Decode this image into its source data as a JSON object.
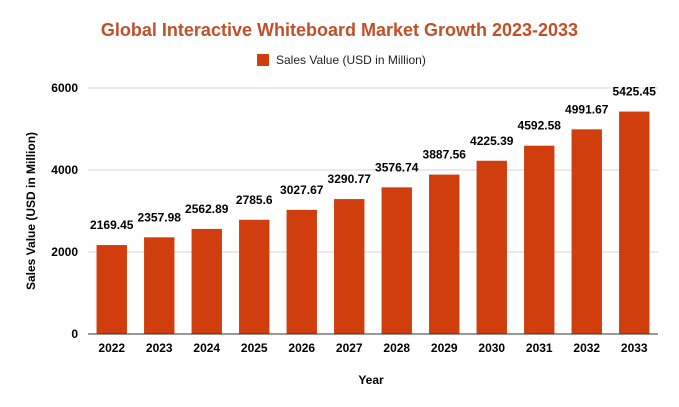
{
  "colors": {
    "bar": "#d13e0d",
    "title": "#c0502a",
    "grid": "#d6d6d6",
    "axis": "#333333"
  },
  "chart_data": {
    "type": "bar",
    "title": "Global Interactive Whiteboard Market Growth 2023-2033",
    "xlabel": "Year",
    "ylabel": "Sales Value (USD in Million)",
    "legend": {
      "placement": "top-center"
    },
    "grid": true,
    "ylim": [
      0,
      6000
    ],
    "yticks": [
      0,
      2000,
      4000,
      6000
    ],
    "categories": [
      "2022",
      "2023",
      "2024",
      "2025",
      "2026",
      "2027",
      "2028",
      "2029",
      "2030",
      "2031",
      "2032",
      "2033"
    ],
    "series": [
      {
        "name": "Sales Value (USD in Million)",
        "values": [
          2169.45,
          2357.98,
          2562.89,
          2785.6,
          3027.67,
          3290.77,
          3576.74,
          3887.56,
          4225.39,
          4592.58,
          4991.67,
          5425.45
        ]
      }
    ]
  }
}
